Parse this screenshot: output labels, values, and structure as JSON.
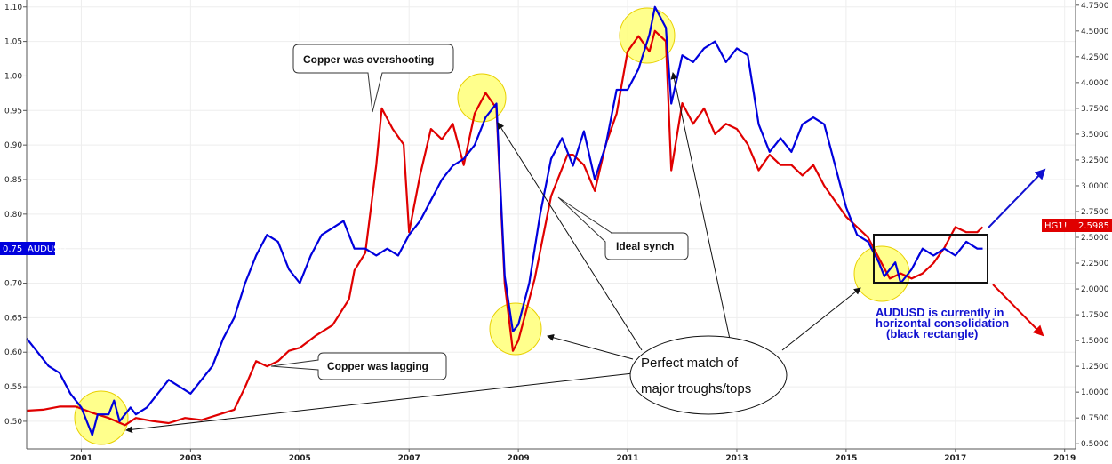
{
  "chart_data": {
    "type": "line",
    "x_range": [
      2000.0,
      2019.2
    ],
    "x_ticks": [
      "2001",
      "2003",
      "2005",
      "2007",
      "2009",
      "2011",
      "2013",
      "2015",
      "2017",
      "2019"
    ],
    "left_axis": {
      "ylim": [
        0.46,
        1.11
      ],
      "ticks": [
        "0.50",
        "0.55",
        "0.60",
        "0.65",
        "0.70",
        "0.75",
        "0.80",
        "0.85",
        "0.90",
        "0.95",
        "1.00",
        "1.05",
        "1.10"
      ]
    },
    "right_axis": {
      "ylim": [
        0.45,
        4.8
      ],
      "ticks": [
        "0.5000",
        "0.7500",
        "1.0000",
        "1.2500",
        "1.5000",
        "1.7500",
        "2.0000",
        "2.2500",
        "2.5000",
        "2.7500",
        "3.0000",
        "3.2500",
        "3.5000",
        "3.7500",
        "4.0000",
        "4.2500",
        "4.5000",
        "4.7500"
      ]
    },
    "series": [
      {
        "name": "AUDUSD",
        "axis": "left",
        "color": "#0000dd",
        "last_value_label": "0.75",
        "points": [
          [
            2000.0,
            0.62
          ],
          [
            2000.2,
            0.6
          ],
          [
            2000.4,
            0.58
          ],
          [
            2000.6,
            0.57
          ],
          [
            2000.8,
            0.54
          ],
          [
            2001.0,
            0.52
          ],
          [
            2001.1,
            0.5
          ],
          [
            2001.2,
            0.48
          ],
          [
            2001.3,
            0.51
          ],
          [
            2001.5,
            0.51
          ],
          [
            2001.6,
            0.53
          ],
          [
            2001.7,
            0.5
          ],
          [
            2001.9,
            0.52
          ],
          [
            2002.0,
            0.51
          ],
          [
            2002.2,
            0.52
          ],
          [
            2002.4,
            0.54
          ],
          [
            2002.6,
            0.56
          ],
          [
            2002.8,
            0.55
          ],
          [
            2003.0,
            0.54
          ],
          [
            2003.2,
            0.56
          ],
          [
            2003.4,
            0.58
          ],
          [
            2003.6,
            0.62
          ],
          [
            2003.8,
            0.65
          ],
          [
            2004.0,
            0.7
          ],
          [
            2004.2,
            0.74
          ],
          [
            2004.4,
            0.77
          ],
          [
            2004.6,
            0.76
          ],
          [
            2004.8,
            0.72
          ],
          [
            2005.0,
            0.7
          ],
          [
            2005.2,
            0.74
          ],
          [
            2005.4,
            0.77
          ],
          [
            2005.6,
            0.78
          ],
          [
            2005.8,
            0.79
          ],
          [
            2006.0,
            0.75
          ],
          [
            2006.2,
            0.75
          ],
          [
            2006.4,
            0.74
          ],
          [
            2006.6,
            0.75
          ],
          [
            2006.8,
            0.74
          ],
          [
            2007.0,
            0.77
          ],
          [
            2007.2,
            0.79
          ],
          [
            2007.4,
            0.82
          ],
          [
            2007.6,
            0.85
          ],
          [
            2007.8,
            0.87
          ],
          [
            2008.0,
            0.88
          ],
          [
            2008.2,
            0.9
          ],
          [
            2008.4,
            0.94
          ],
          [
            2008.6,
            0.96
          ],
          [
            2008.75,
            0.71
          ],
          [
            2008.9,
            0.63
          ],
          [
            2009.0,
            0.64
          ],
          [
            2009.2,
            0.7
          ],
          [
            2009.4,
            0.8
          ],
          [
            2009.6,
            0.88
          ],
          [
            2009.8,
            0.91
          ],
          [
            2010.0,
            0.87
          ],
          [
            2010.2,
            0.92
          ],
          [
            2010.4,
            0.85
          ],
          [
            2010.6,
            0.9
          ],
          [
            2010.8,
            0.98
          ],
          [
            2011.0,
            0.98
          ],
          [
            2011.2,
            1.01
          ],
          [
            2011.4,
            1.06
          ],
          [
            2011.5,
            1.1
          ],
          [
            2011.7,
            1.07
          ],
          [
            2011.8,
            0.96
          ],
          [
            2012.0,
            1.03
          ],
          [
            2012.2,
            1.02
          ],
          [
            2012.4,
            1.04
          ],
          [
            2012.6,
            1.05
          ],
          [
            2012.8,
            1.02
          ],
          [
            2013.0,
            1.04
          ],
          [
            2013.2,
            1.03
          ],
          [
            2013.4,
            0.93
          ],
          [
            2013.6,
            0.89
          ],
          [
            2013.8,
            0.91
          ],
          [
            2014.0,
            0.89
          ],
          [
            2014.2,
            0.93
          ],
          [
            2014.4,
            0.94
          ],
          [
            2014.6,
            0.93
          ],
          [
            2014.8,
            0.87
          ],
          [
            2015.0,
            0.81
          ],
          [
            2015.2,
            0.77
          ],
          [
            2015.4,
            0.76
          ],
          [
            2015.6,
            0.73
          ],
          [
            2015.7,
            0.71
          ],
          [
            2015.9,
            0.73
          ],
          [
            2016.0,
            0.7
          ],
          [
            2016.2,
            0.72
          ],
          [
            2016.4,
            0.75
          ],
          [
            2016.6,
            0.74
          ],
          [
            2016.8,
            0.75
          ],
          [
            2017.0,
            0.74
          ],
          [
            2017.2,
            0.76
          ],
          [
            2017.4,
            0.75
          ],
          [
            2017.5,
            0.75
          ]
        ]
      },
      {
        "name": "HG1!",
        "axis": "right",
        "color": "#e00000",
        "last_value_label": "2.5985",
        "points": [
          [
            2000.0,
            0.82
          ],
          [
            2000.3,
            0.83
          ],
          [
            2000.6,
            0.86
          ],
          [
            2000.9,
            0.86
          ],
          [
            2001.2,
            0.8
          ],
          [
            2001.5,
            0.75
          ],
          [
            2001.8,
            0.68
          ],
          [
            2002.0,
            0.75
          ],
          [
            2002.3,
            0.72
          ],
          [
            2002.6,
            0.7
          ],
          [
            2002.9,
            0.75
          ],
          [
            2003.2,
            0.73
          ],
          [
            2003.5,
            0.78
          ],
          [
            2003.8,
            0.83
          ],
          [
            2004.0,
            1.05
          ],
          [
            2004.2,
            1.3
          ],
          [
            2004.4,
            1.25
          ],
          [
            2004.6,
            1.3
          ],
          [
            2004.8,
            1.4
          ],
          [
            2005.0,
            1.43
          ],
          [
            2005.3,
            1.55
          ],
          [
            2005.6,
            1.65
          ],
          [
            2005.9,
            1.9
          ],
          [
            2006.0,
            2.18
          ],
          [
            2006.2,
            2.35
          ],
          [
            2006.4,
            3.2
          ],
          [
            2006.5,
            3.75
          ],
          [
            2006.7,
            3.55
          ],
          [
            2006.9,
            3.4
          ],
          [
            2007.0,
            2.55
          ],
          [
            2007.2,
            3.1
          ],
          [
            2007.4,
            3.55
          ],
          [
            2007.6,
            3.45
          ],
          [
            2007.8,
            3.6
          ],
          [
            2008.0,
            3.2
          ],
          [
            2008.2,
            3.7
          ],
          [
            2008.4,
            3.9
          ],
          [
            2008.6,
            3.75
          ],
          [
            2008.75,
            2.05
          ],
          [
            2008.9,
            1.4
          ],
          [
            2009.0,
            1.5
          ],
          [
            2009.3,
            2.1
          ],
          [
            2009.6,
            2.9
          ],
          [
            2009.9,
            3.3
          ],
          [
            2010.0,
            3.3
          ],
          [
            2010.2,
            3.2
          ],
          [
            2010.4,
            2.95
          ],
          [
            2010.6,
            3.4
          ],
          [
            2010.8,
            3.7
          ],
          [
            2011.0,
            4.3
          ],
          [
            2011.2,
            4.45
          ],
          [
            2011.4,
            4.3
          ],
          [
            2011.5,
            4.5
          ],
          [
            2011.7,
            4.4
          ],
          [
            2011.8,
            3.15
          ],
          [
            2012.0,
            3.8
          ],
          [
            2012.2,
            3.6
          ],
          [
            2012.4,
            3.75
          ],
          [
            2012.6,
            3.5
          ],
          [
            2012.8,
            3.6
          ],
          [
            2013.0,
            3.55
          ],
          [
            2013.2,
            3.4
          ],
          [
            2013.4,
            3.15
          ],
          [
            2013.6,
            3.3
          ],
          [
            2013.8,
            3.2
          ],
          [
            2014.0,
            3.2
          ],
          [
            2014.2,
            3.1
          ],
          [
            2014.4,
            3.2
          ],
          [
            2014.6,
            3.0
          ],
          [
            2014.8,
            2.85
          ],
          [
            2015.0,
            2.7
          ],
          [
            2015.2,
            2.6
          ],
          [
            2015.4,
            2.5
          ],
          [
            2015.6,
            2.3
          ],
          [
            2015.8,
            2.1
          ],
          [
            2016.0,
            2.15
          ],
          [
            2016.2,
            2.1
          ],
          [
            2016.4,
            2.15
          ],
          [
            2016.6,
            2.25
          ],
          [
            2016.8,
            2.4
          ],
          [
            2017.0,
            2.6
          ],
          [
            2017.2,
            2.55
          ],
          [
            2017.4,
            2.55
          ],
          [
            2017.5,
            2.6
          ]
        ]
      }
    ],
    "axis_tags": {
      "left": {
        "value": "0.75",
        "name": "AUDUSD",
        "color": "#0000dd"
      },
      "right": {
        "name": "HG1!",
        "value": "2.5985",
        "color": "#e00000"
      }
    },
    "annotations": {
      "copper_overshooting": "Copper was overshooting",
      "copper_lagging": "Copper was lagging",
      "ideal_synch": "Ideal synch",
      "perfect_match": [
        "Perfect match of",
        "major troughs/tops"
      ],
      "audusd_note": [
        "AUDUSD is currently in",
        "horizontal consolidation",
        "(black rectangle)"
      ]
    }
  }
}
